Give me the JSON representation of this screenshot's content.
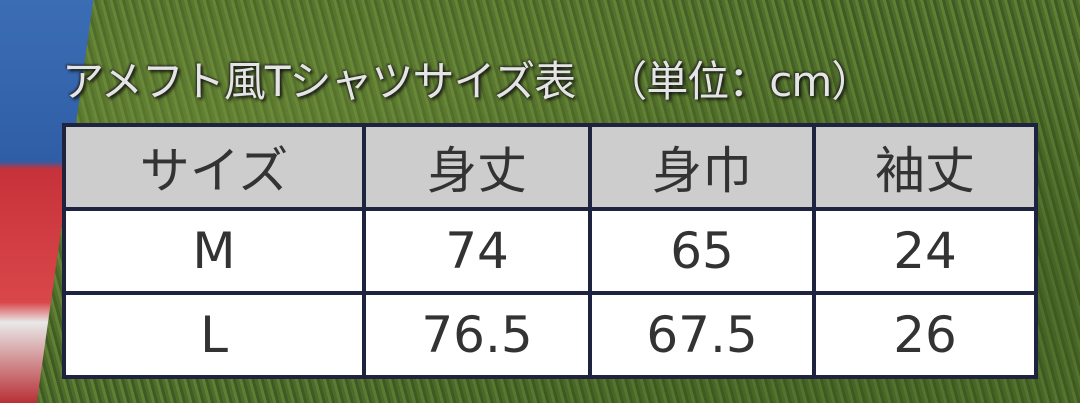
{
  "header": {
    "title": "アメフト風Tシャツサイズ表",
    "unit": "（単位：cm）"
  },
  "table": {
    "columns": [
      "サイズ",
      "身丈",
      "身巾",
      "袖丈"
    ],
    "rows": [
      [
        "M",
        74,
        65,
        24
      ],
      [
        "L",
        76.5,
        67.5,
        26
      ]
    ]
  }
}
